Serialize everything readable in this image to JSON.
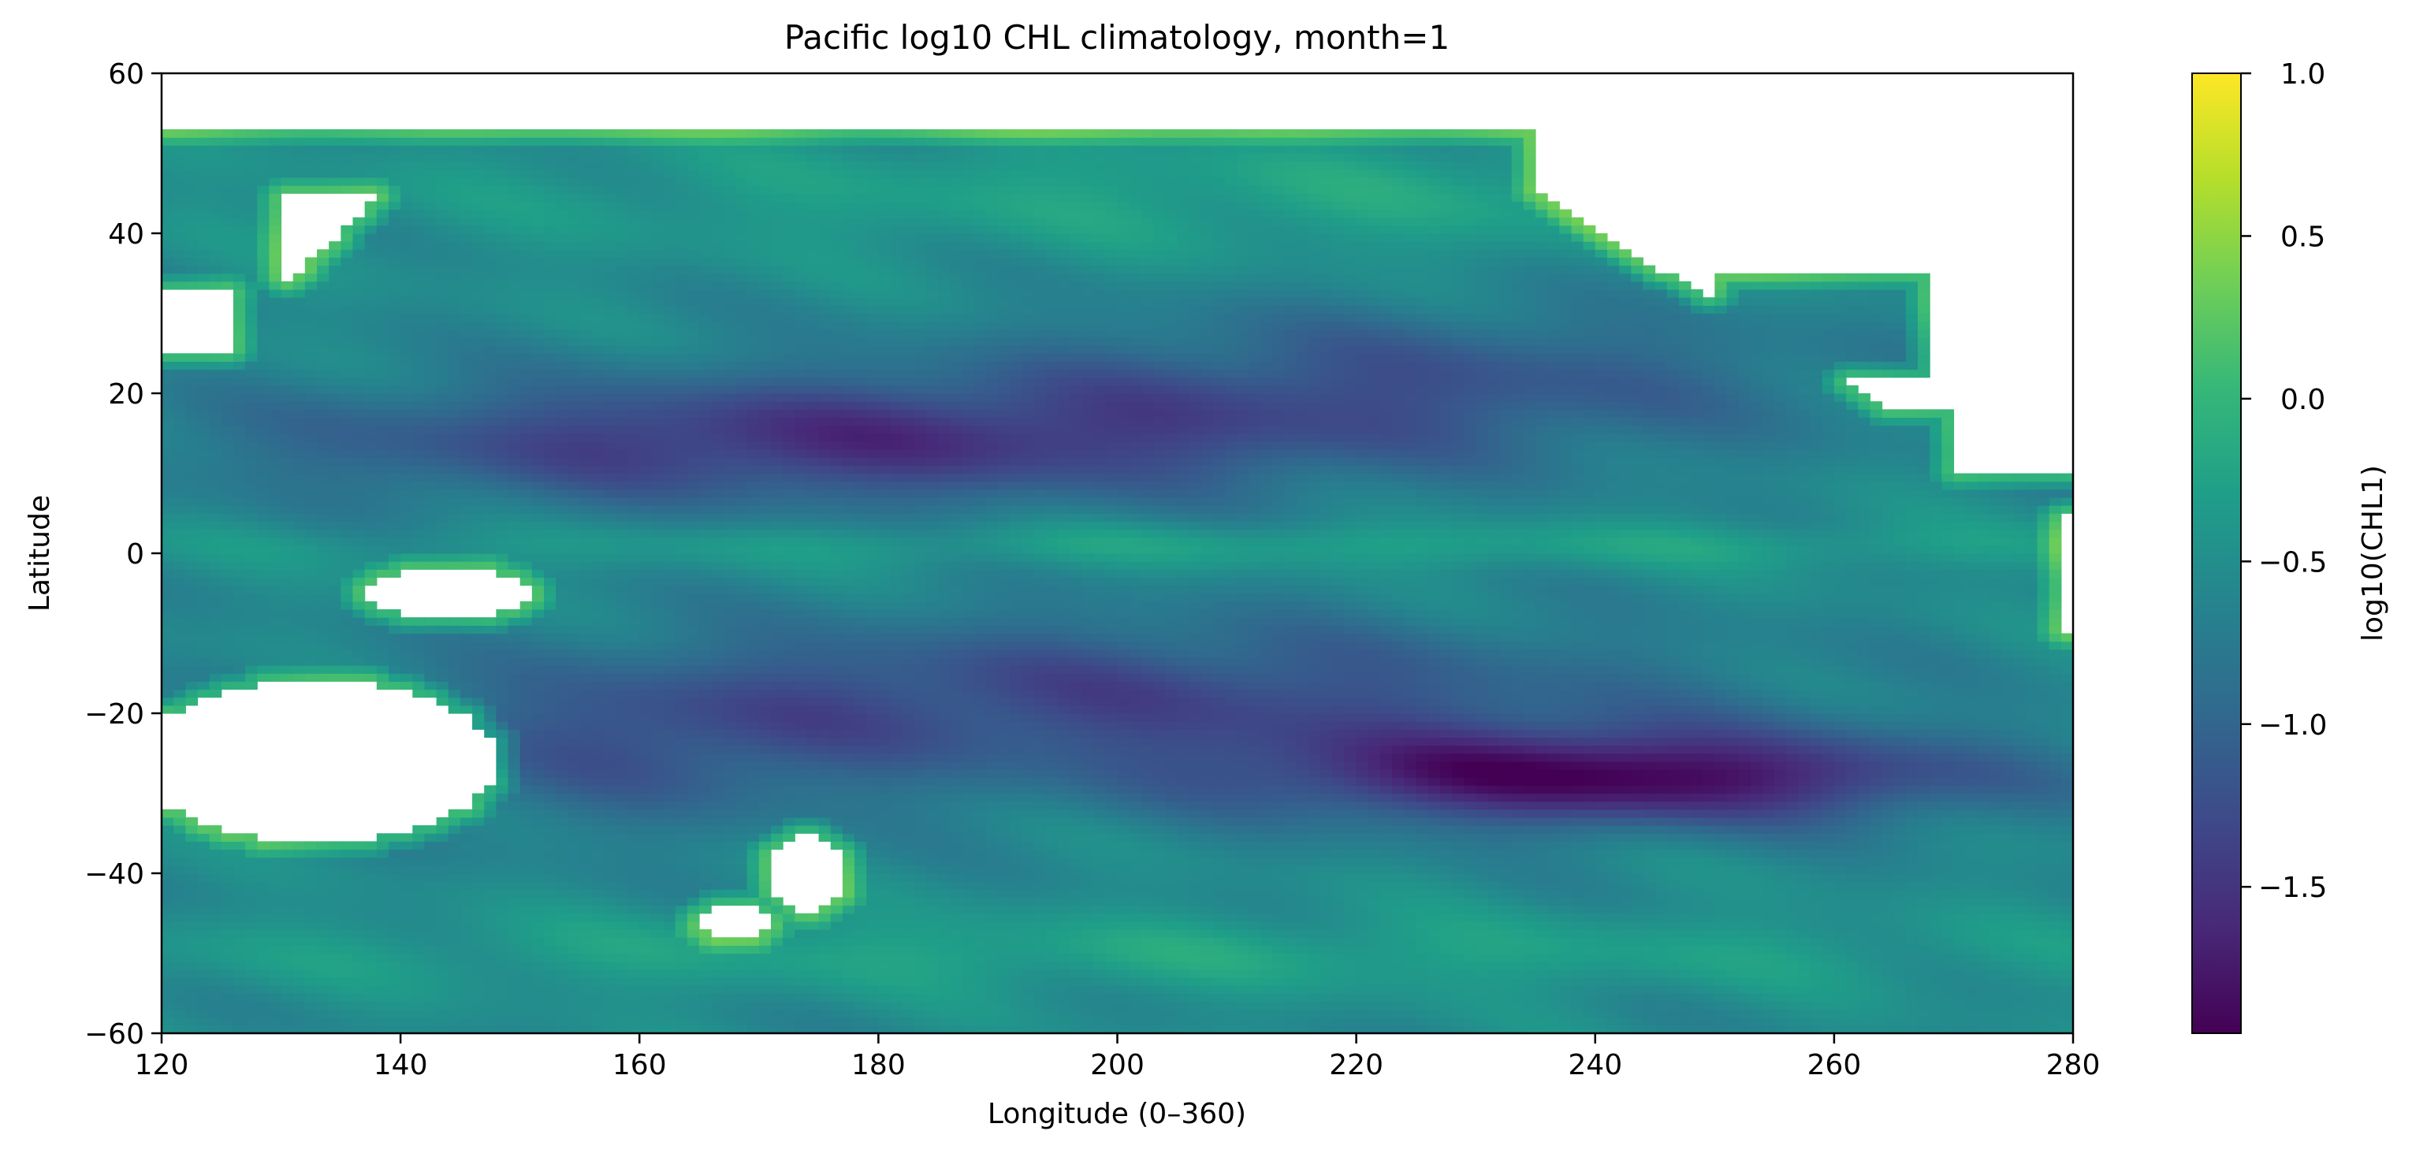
{
  "chart_data": {
    "type": "heatmap",
    "title": "Pacific log10 CHL climatology, month=1",
    "xlabel": "Longitude (0–360)",
    "ylabel": "Latitude",
    "xlim": [
      120,
      280
    ],
    "ylim": [
      -60,
      60
    ],
    "x_ticks": [
      120,
      140,
      160,
      180,
      200,
      220,
      240,
      260,
      280
    ],
    "x_tick_labels": [
      "120",
      "140",
      "160",
      "180",
      "200",
      "220",
      "240",
      "260",
      "280"
    ],
    "y_ticks": [
      60,
      40,
      20,
      0,
      -20,
      -40,
      -60
    ],
    "y_tick_labels": [
      "60",
      "40",
      "20",
      "0",
      "−20",
      "−40",
      "−60"
    ],
    "colorbar": {
      "label": "log10(CHL1)",
      "vmin": -1.95,
      "vmax": 1.0,
      "ticks": [
        1.0,
        0.5,
        0.0,
        -0.5,
        -1.0,
        -1.5
      ],
      "tick_labels": [
        "1.0",
        "0.5",
        "0.0",
        "−0.5",
        "−1.0",
        "−1.5"
      ],
      "colormap": "viridis"
    },
    "grid": false,
    "grid_resolution_deg": 1.0,
    "data_lat_max": 53,
    "missing_value_color": "#ffffff",
    "field_description": "Gridded log10 chlorophyll values over the Pacific; oligotrophic gyres near 15N (about -1.6) and 28S 240E (about -1.9), higher values (0 to 1) along coasts, near the equator and in the Southern Ocean band; land and no-data cells are blank."
  },
  "colors": {
    "viridis": [
      "#440154",
      "#482878",
      "#3e4989",
      "#31688e",
      "#26828e",
      "#1f9e89",
      "#35b779",
      "#6ece58",
      "#b5de2b",
      "#fde725"
    ]
  }
}
